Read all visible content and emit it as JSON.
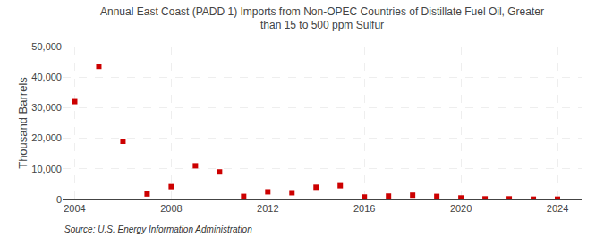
{
  "chart_data": {
    "type": "scatter",
    "title": "Annual East Coast (PADD 1) Imports from Non-OPEC Countries of Distillate Fuel Oil, Greater\nthan 15 to 500 ppm Sulfur",
    "ylabel": "Thousand Barrels",
    "annotations": [
      "Source: U.S. Energy Information Administration"
    ],
    "x": [
      2004,
      2005,
      2006,
      2007,
      2008,
      2009,
      2010,
      2011,
      2012,
      2013,
      2014,
      2015,
      2016,
      2017,
      2018,
      2019,
      2020,
      2021,
      2022,
      2023,
      2024
    ],
    "values": [
      32000,
      43500,
      19000,
      1800,
      4200,
      11000,
      9000,
      1000,
      2500,
      2200,
      4000,
      4500,
      800,
      1100,
      1400,
      1000,
      500,
      200,
      200,
      100,
      100
    ],
    "color": "#cc0000",
    "marker": "square",
    "xlim": [
      2003.5,
      2025
    ],
    "xticks": [
      2004,
      2008,
      2012,
      2016,
      2020,
      2024
    ],
    "ylim": [
      0,
      50000
    ],
    "yticks": [
      0,
      {
        "value": 10000,
        "label": "10,000"
      },
      {
        "value": 20000,
        "label": "20,000"
      },
      {
        "value": 30000,
        "label": "30,000"
      },
      {
        "value": 40000,
        "label": "40,000"
      },
      {
        "value": 50000,
        "label": "50,000"
      }
    ],
    "grid": true
  }
}
